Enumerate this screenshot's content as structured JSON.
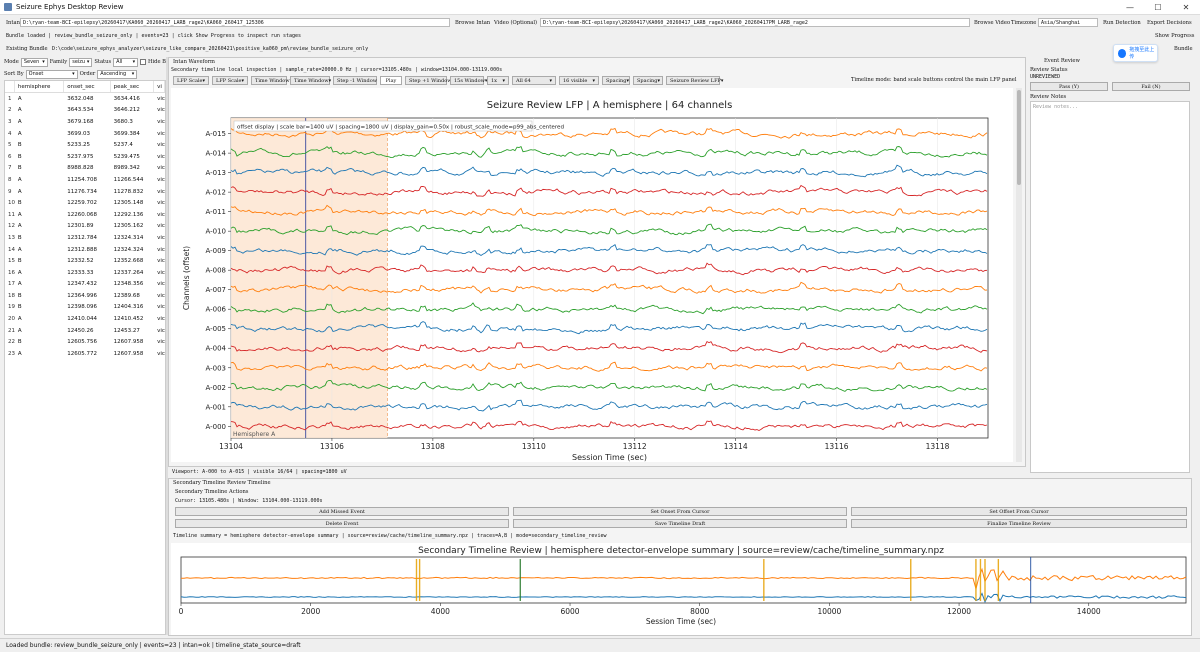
{
  "window": {
    "title": "Seizure Ephys Desktop Review",
    "minimize": "—",
    "maximize": "☐",
    "close": "✕"
  },
  "top": {
    "intan_label": "Intan",
    "intan_path": "D:\\ryan-team-BCI-epilepsy\\20260417\\KA060_20260417_LARB_rage2\\KA060_260417_125306",
    "browse_intan": "Browse Intan",
    "video_label": "Video (Optional)",
    "video_path": "D:\\ryan-team-BCI-epilepsy\\20260417\\KA060_20260417_LARB_rage2\\KA060_20260417PM_LARB_rage2",
    "browse_video": "Browse Video",
    "timezone_label": "Timezone",
    "timezone_value": "Asia/Shanghai",
    "run_detection": "Run Detection",
    "export_decisions": "Export Decisions",
    "bundle_status": "Bundle loaded | review_bundle_seizure_only | events=23 | click Show Progress to inspect run stages",
    "show_progress": "Show Progress",
    "existing_bundle_label": "Existing Bundle",
    "existing_bundle_path": "D:\\code\\seizure_ephys_analyzer\\seizure_like_compare_20260421\\positive_ka060_pm\\review_bundle_seizure_only",
    "bundle_btn": "Bundle"
  },
  "badge": {
    "text": "拖拽至此上传"
  },
  "filters": {
    "mode_label": "Mode",
    "mode_value": "Seven",
    "family_label": "Family",
    "family_value": "seizu",
    "status_label": "Status",
    "status_value": "All",
    "hide_label": "Hide B",
    "sort_label": "Sort By",
    "sort_value": "Onset",
    "order_label": "Order",
    "order_value": "Ascending"
  },
  "table": {
    "headers": [
      "",
      "hemisphere",
      "onset_sec",
      "peak_sec",
      "vi"
    ],
    "rows": [
      [
        "1",
        "A",
        "3632.048",
        "3634.416",
        "vic"
      ],
      [
        "2",
        "A",
        "3643.534",
        "3646.212",
        "vic"
      ],
      [
        "3",
        "A",
        "3679.168",
        "3680.3",
        "vic"
      ],
      [
        "4",
        "A",
        "3699.03",
        "3699.384",
        "vic"
      ],
      [
        "5",
        "B",
        "5233.25",
        "5237.4",
        "vic"
      ],
      [
        "6",
        "B",
        "5237.975",
        "5239.475",
        "vic"
      ],
      [
        "7",
        "B",
        "8988.828",
        "8989.342",
        "vic"
      ],
      [
        "8",
        "A",
        "11254.708",
        "11266.544",
        "vic"
      ],
      [
        "9",
        "A",
        "11276.734",
        "11278.832",
        "vic"
      ],
      [
        "10",
        "B",
        "12259.702",
        "12305.148",
        "vic"
      ],
      [
        "11",
        "A",
        "12260.068",
        "12292.136",
        "vic"
      ],
      [
        "12",
        "A",
        "12301.89",
        "12305.162",
        "vic"
      ],
      [
        "13",
        "B",
        "12312.784",
        "12324.314",
        "vic"
      ],
      [
        "14",
        "A",
        "12312.888",
        "12324.324",
        "vic"
      ],
      [
        "15",
        "B",
        "12332.52",
        "12352.668",
        "vic"
      ],
      [
        "16",
        "A",
        "12333.33",
        "12337.264",
        "vic"
      ],
      [
        "17",
        "A",
        "12347.432",
        "12348.356",
        "vic"
      ],
      [
        "18",
        "B",
        "12364.996",
        "12389.68",
        "vic"
      ],
      [
        "19",
        "B",
        "12398.096",
        "12404.316",
        "vic"
      ],
      [
        "20",
        "A",
        "12410.044",
        "12410.452",
        "vic"
      ],
      [
        "21",
        "A",
        "12450.26",
        "12453.27",
        "vic"
      ],
      [
        "22",
        "B",
        "12605.756",
        "12607.958",
        "vic"
      ],
      [
        "23",
        "A",
        "12605.772",
        "12607.958",
        "vic"
      ]
    ]
  },
  "waveform": {
    "group_title": "Intan Waveform",
    "info": "Secondary timeline local inspection | sample_rate=20000.0 Hz | cursor=13105.480s | window=13104.000-13119.000s",
    "controls": [
      "LFP Scale",
      "LFP Scale",
      "Time Window",
      "Time Window",
      "Step -1 Window",
      "Play",
      "Step +1 Window",
      "15s Window",
      "1x",
      "All 64",
      "16 visible",
      "Spacing",
      "Spacing",
      "Seizure Review LFP"
    ],
    "timeline_mode": "Timeline mode: band scale buttons control the main LFP panel",
    "viewport": "Viewport: A-000 to A-015 | visible 16/64 | spacing=1800 uV"
  },
  "chart_data": {
    "type": "line",
    "title": "Seizure Review LFP | A hemisphere | 64 channels",
    "xlabel": "Session Time (sec)",
    "ylabel": "Channels (offset)",
    "xlim": [
      13104,
      13119
    ],
    "x_ticks": [
      13104,
      13106,
      13108,
      13110,
      13112,
      13114,
      13116,
      13118
    ],
    "channels": [
      "A-015",
      "A-014",
      "A-013",
      "A-012",
      "A-011",
      "A-010",
      "A-009",
      "A-008",
      "A-007",
      "A-006",
      "A-005",
      "A-004",
      "A-003",
      "A-002",
      "A-001",
      "A-000"
    ],
    "channel_colors": [
      "#ff7f0e",
      "#2ca02c",
      "#1f77b4",
      "#d62728",
      "#ff7f0e",
      "#2ca02c",
      "#1f77b4",
      "#d62728",
      "#ff7f0e",
      "#2ca02c",
      "#1f77b4",
      "#d62728",
      "#ff7f0e",
      "#2ca02c",
      "#1f77b4",
      "#d62728"
    ],
    "annotation": "offset display | scale bar=1400 uV | spacing=1800 uV | display_gain=0.50x | robust_scale_mode=p99_abs_centered",
    "hemisphere_label": "Hemisphere A",
    "scale_bar_label": "1400 uV",
    "cursor_sec": 13105.48,
    "event_span_sec": [
      13104,
      13107.1
    ],
    "shade_color": "#fde7d4"
  },
  "timeline": {
    "group_title": "Secondary Timeline Review Timeline",
    "actions_title": "Secondary Timeline Actions",
    "cursor_info": "Cursor: 13105.480s | Window: 13104.000-13119.000s",
    "buttons": [
      "Add Missed Event",
      "Set Onset From Cursor",
      "Set Offset From Cursor",
      "Delete Event",
      "Save Timeline Draft",
      "Finalize Timeline Review"
    ],
    "summary": "Timeline summary = hemisphere detector-envelope summary | source=review/cache/timeline_summary.npz | traces=A,B | mode=secondary_timeline_review"
  },
  "timeline_chart": {
    "type": "line",
    "title": "Secondary Timeline Review | hemisphere detector-envelope summary | source=review/cache/timeline_summary.npz",
    "xlabel": "Session Time (sec)",
    "xlim": [
      0,
      15500
    ],
    "x_ticks": [
      0,
      2000,
      4000,
      6000,
      8000,
      10000,
      12000,
      14000
    ],
    "series": [
      {
        "name": "A",
        "color": "#ff7f0e"
      },
      {
        "name": "B",
        "color": "#1f77b4"
      }
    ],
    "event_markers": [
      3632,
      3680,
      5233,
      8989,
      11255,
      12260,
      12330,
      12400,
      12606
    ],
    "marker_colors": [
      "#e6a000",
      "#e6a000",
      "#2e7d32",
      "#e6a000",
      "#e6a000",
      "#e6a000",
      "#e6a000",
      "#e6a000",
      "#e6a000"
    ],
    "cursor_sec": 13105
  },
  "event_review": {
    "title": "Event Review",
    "status_label": "Review Status",
    "status_value": "UNREVIEWED",
    "pass": "Pass (Y)",
    "fail": "Fail (N)",
    "notes_label": "Review Notes",
    "notes_placeholder": "Review notes..."
  },
  "status_bar": "Loaded bundle: review_bundle_seizure_only | events=23 | intan=ok | timeline_state_source=draft"
}
